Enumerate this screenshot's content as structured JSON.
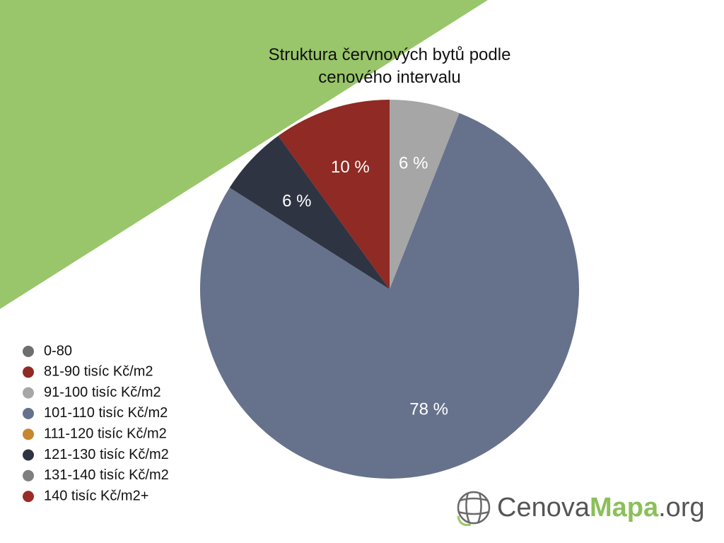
{
  "chart_data": {
    "type": "pie",
    "title": "Struktura červnových bytů podle cenového intervalu",
    "categories": [
      "0-80",
      "81-90 tisíc Kč/m2",
      "91-100 tisíc Kč/m2",
      "101-110 tisíc Kč/m2",
      "111-120 tisíc Kč/m2",
      "121-130 tisíc Kč/m2",
      "131-140 tisíc Kč/m2",
      "140 tisíc Kč/m2+"
    ],
    "values": [
      0,
      10,
      6,
      78,
      0,
      6,
      0,
      0
    ],
    "value_labels": [
      null,
      "10 %",
      "6 %",
      "78 %",
      null,
      "6 %",
      null,
      null
    ],
    "colors": [
      "#6e6e6e",
      "#8f2a24",
      "#a6a6a6",
      "#66728c",
      "#c8862e",
      "#2f3442",
      "#7f7f7f",
      "#9b2b26"
    ],
    "legend": "left"
  },
  "logo": {
    "part1": "Cenova",
    "part2": "Mapa",
    "part3": ".org"
  }
}
